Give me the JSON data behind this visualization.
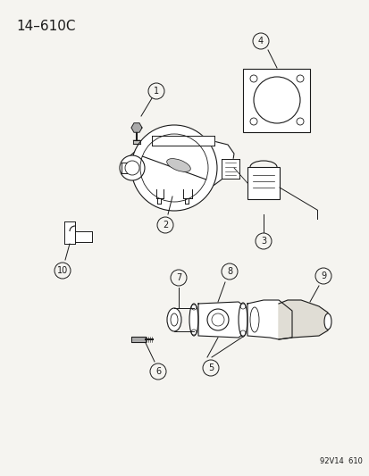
{
  "title": "14–610C",
  "watermark": "92V14  610",
  "bg_color": "#f5f4f0",
  "fg_color": "#1a1a1a",
  "figsize": [
    4.14,
    5.33
  ],
  "dpi": 100,
  "title_fontsize": 11,
  "label_fontsize": 7.5
}
